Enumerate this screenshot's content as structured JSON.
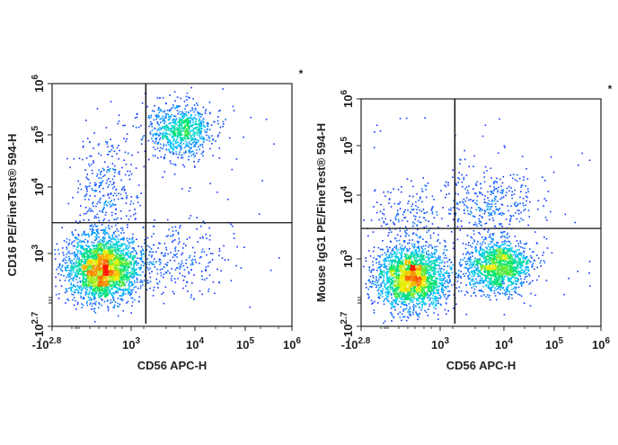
{
  "chart_data": [
    {
      "type": "scatter",
      "subtype": "flow-cytometry-density-dot-plot",
      "xlabel": "CD56 APC-H",
      "ylabel": "CD16 PE/FineTest® 594-H",
      "corner_mark": "*",
      "x_scale": "biexponential",
      "y_scale": "biexponential",
      "xlim": [
        -631,
        1000000
      ],
      "ylim": [
        -501,
        1000000
      ],
      "x_ticks": [
        {
          "base": "-10",
          "exp": "2.8"
        },
        {
          "base": "10",
          "exp": "3"
        },
        {
          "base": "10",
          "exp": "4"
        },
        {
          "base": "10",
          "exp": "5"
        },
        {
          "base": "10",
          "exp": "6"
        }
      ],
      "y_ticks": [
        {
          "base": "-10",
          "exp": "2.7"
        },
        {
          "base": "10",
          "exp": "3"
        },
        {
          "base": "10",
          "exp": "4"
        },
        {
          "base": "10",
          "exp": "5"
        },
        {
          "base": "10",
          "exp": "6"
        }
      ],
      "quadrant_gate": {
        "x": 1700,
        "y": 2900
      },
      "color_scale": "density (blue-cyan-green-yellow-red)",
      "populations": [
        {
          "x": 400,
          "y": 700,
          "relative_size": 0.62
        },
        {
          "x": 6000,
          "y": 130000,
          "relative_size": 0.2
        },
        {
          "x": 5000,
          "y": 900,
          "relative_size": 0.06
        },
        {
          "x": 500,
          "y": 8000,
          "relative_size": 0.08
        }
      ]
    },
    {
      "type": "scatter",
      "subtype": "flow-cytometry-density-dot-plot",
      "xlabel": "CD56 APC-H",
      "ylabel": "Mouse IgG1 PE/FineTest® 594-H",
      "corner_mark": "*",
      "x_scale": "biexponential",
      "y_scale": "biexponential",
      "xlim": [
        -631,
        1000000
      ],
      "ylim": [
        -501,
        1000000
      ],
      "x_ticks": [
        {
          "base": "-10",
          "exp": "2.8"
        },
        {
          "base": "10",
          "exp": "3"
        },
        {
          "base": "10",
          "exp": "4"
        },
        {
          "base": "10",
          "exp": "5"
        },
        {
          "base": "10",
          "exp": "6"
        }
      ],
      "y_ticks": [
        {
          "base": "-10",
          "exp": "2.7"
        },
        {
          "base": "10",
          "exp": "3"
        },
        {
          "base": "10",
          "exp": "4"
        },
        {
          "base": "10",
          "exp": "5"
        },
        {
          "base": "10",
          "exp": "6"
        }
      ],
      "quadrant_gate": {
        "x": 1700,
        "y": 3000
      },
      "color_scale": "density (blue-cyan-green-yellow-red)",
      "populations": [
        {
          "x": 400,
          "y": 600,
          "relative_size": 0.55
        },
        {
          "x": 8000,
          "y": 850,
          "relative_size": 0.33
        },
        {
          "x": 6000,
          "y": 8000,
          "relative_size": 0.08
        },
        {
          "x": 300,
          "y": 5000,
          "relative_size": 0.04
        }
      ]
    }
  ]
}
